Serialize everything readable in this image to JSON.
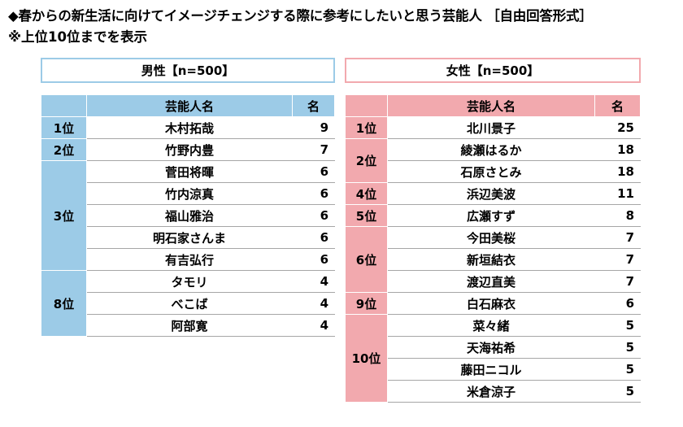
{
  "title": "◆春からの新生活に向けてイメージチェンジする際に参考にしたいと思う芸能人 ［自由回答形式］",
  "subtitle": "※上位10位までを表示",
  "male": {
    "header": "男性【n=500】",
    "col_name": "芸能人名",
    "col_count": "名",
    "groups": [
      {
        "rank": "1位",
        "rows": [
          {
            "name": "木村拓哉",
            "count": "9"
          }
        ]
      },
      {
        "rank": "2位",
        "rows": [
          {
            "name": "竹野内豊",
            "count": "7"
          }
        ]
      },
      {
        "rank": "3位",
        "rows": [
          {
            "name": "菅田将暉",
            "count": "6"
          },
          {
            "name": "竹内涼真",
            "count": "6"
          },
          {
            "name": "福山雅治",
            "count": "6"
          },
          {
            "name": "明石家さんま",
            "count": "6"
          },
          {
            "name": "有吉弘行",
            "count": "6"
          }
        ]
      },
      {
        "rank": "8位",
        "rows": [
          {
            "name": "タモリ",
            "count": "4"
          },
          {
            "name": "べこば",
            "count": "4"
          },
          {
            "name": "阿部寛",
            "count": "4"
          }
        ]
      }
    ]
  },
  "female": {
    "header": "女性【n=500】",
    "col_name": "芸能人名",
    "col_count": "名",
    "groups": [
      {
        "rank": "1位",
        "rows": [
          {
            "name": "北川景子",
            "count": "25"
          }
        ]
      },
      {
        "rank": "2位",
        "rows": [
          {
            "name": "綾瀬はるか",
            "count": "18"
          },
          {
            "name": "石原さとみ",
            "count": "18"
          }
        ]
      },
      {
        "rank": "4位",
        "rows": [
          {
            "name": "浜辺美波",
            "count": "11"
          }
        ]
      },
      {
        "rank": "5位",
        "rows": [
          {
            "name": "広瀬すず",
            "count": "8"
          }
        ]
      },
      {
        "rank": "6位",
        "rows": [
          {
            "name": "今田美桜",
            "count": "7"
          },
          {
            "name": "新垣結衣",
            "count": "7"
          },
          {
            "name": "渡辺直美",
            "count": "7"
          }
        ]
      },
      {
        "rank": "9位",
        "rows": [
          {
            "name": "白石麻衣",
            "count": "6"
          }
        ]
      },
      {
        "rank": "10位",
        "rows": [
          {
            "name": "菜々緒",
            "count": "5"
          },
          {
            "name": "天海祐希",
            "count": "5"
          },
          {
            "name": "藤田ニコル",
            "count": "5"
          },
          {
            "name": "米倉涼子",
            "count": "5"
          }
        ]
      }
    ]
  }
}
